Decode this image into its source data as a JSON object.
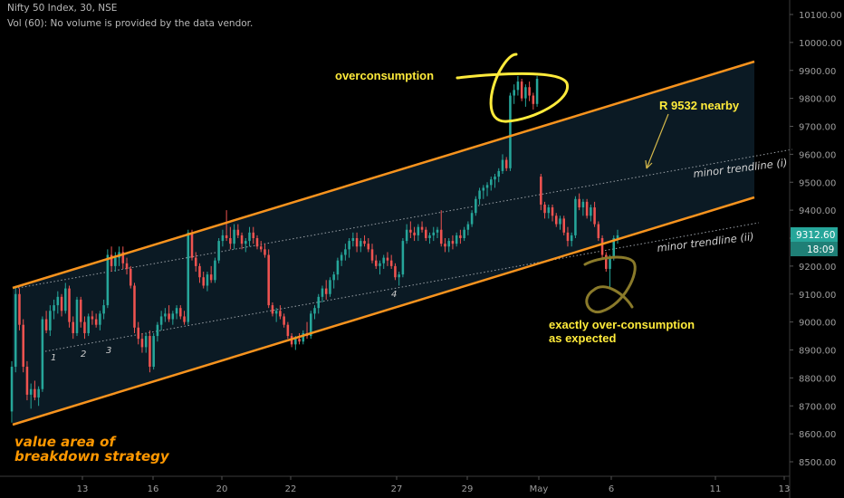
{
  "header": {
    "symbol_line": "Nifty 50 Index, 30, NSE",
    "volume_line": "Vol (60): No volume is provided by the data vendor."
  },
  "colors": {
    "background": "#000000",
    "channel_line": "#f7931e",
    "channel_fill": "#0b1a24",
    "candle_up": "#26a69a",
    "candle_down": "#ef5350",
    "annotation_yellow": "#ffeb3b",
    "annotation_orange": "#ff9800",
    "circle_olive": "#8a7a2a",
    "price_tag_bg": "#26a69a",
    "trendline_dotted": "#9aa0a6"
  },
  "chart_data": {
    "type": "candlestick",
    "symbol": "Nifty 50 Index",
    "interval": "30",
    "exchange": "NSE",
    "x_ticks": [
      "13",
      "16",
      "20",
      "22",
      "27",
      "29",
      "May",
      "6",
      "11",
      "13"
    ],
    "y_ticks": [
      "8500.00",
      "8600.00",
      "8700.00",
      "8800.00",
      "8900.00",
      "9000.00",
      "9100.00",
      "9200.00",
      "9300.00",
      "9400.00",
      "9500.00",
      "9600.00",
      "9700.00",
      "9800.00",
      "9900.00",
      "10000.00",
      "10100.00"
    ],
    "ylim": [
      8450,
      10160
    ],
    "last_price": "9312.60",
    "countdown": "18:09",
    "candles": [
      {
        "o": 8680,
        "h": 8860,
        "l": 8640,
        "c": 8840
      },
      {
        "o": 8840,
        "h": 9130,
        "l": 8820,
        "c": 9100
      },
      {
        "o": 9100,
        "h": 9120,
        "l": 8970,
        "c": 8990
      },
      {
        "o": 8990,
        "h": 9010,
        "l": 8820,
        "c": 8840
      },
      {
        "o": 8840,
        "h": 8860,
        "l": 8720,
        "c": 8740
      },
      {
        "o": 8740,
        "h": 8780,
        "l": 8690,
        "c": 8760
      },
      {
        "o": 8760,
        "h": 8790,
        "l": 8720,
        "c": 8730
      },
      {
        "o": 8730,
        "h": 8770,
        "l": 8700,
        "c": 8760
      },
      {
        "o": 8760,
        "h": 9020,
        "l": 8750,
        "c": 9010
      },
      {
        "o": 9010,
        "h": 9040,
        "l": 8960,
        "c": 8970
      },
      {
        "o": 8970,
        "h": 9060,
        "l": 8950,
        "c": 9040
      },
      {
        "o": 9040,
        "h": 9080,
        "l": 9010,
        "c": 9060
      },
      {
        "o": 9060,
        "h": 9110,
        "l": 9030,
        "c": 9090
      },
      {
        "o": 9090,
        "h": 9100,
        "l": 9020,
        "c": 9040
      },
      {
        "o": 9040,
        "h": 9140,
        "l": 9030,
        "c": 9120
      },
      {
        "o": 9120,
        "h": 9130,
        "l": 8980,
        "c": 9000
      },
      {
        "o": 9000,
        "h": 9020,
        "l": 8940,
        "c": 8960
      },
      {
        "o": 8960,
        "h": 9090,
        "l": 8950,
        "c": 9080
      },
      {
        "o": 9080,
        "h": 9090,
        "l": 8980,
        "c": 9000
      },
      {
        "o": 9000,
        "h": 9020,
        "l": 8940,
        "c": 8960
      },
      {
        "o": 8960,
        "h": 9030,
        "l": 8950,
        "c": 9020
      },
      {
        "o": 9020,
        "h": 9040,
        "l": 8990,
        "c": 9010
      },
      {
        "o": 9010,
        "h": 9030,
        "l": 8980,
        "c": 8990
      },
      {
        "o": 8990,
        "h": 9040,
        "l": 8970,
        "c": 9030
      },
      {
        "o": 9030,
        "h": 9080,
        "l": 9010,
        "c": 9060
      },
      {
        "o": 9060,
        "h": 9260,
        "l": 9050,
        "c": 9240
      },
      {
        "o": 9240,
        "h": 9270,
        "l": 9180,
        "c": 9200
      },
      {
        "o": 9200,
        "h": 9250,
        "l": 9180,
        "c": 9230
      },
      {
        "o": 9230,
        "h": 9270,
        "l": 9200,
        "c": 9250
      },
      {
        "o": 9250,
        "h": 9270,
        "l": 9190,
        "c": 9210
      },
      {
        "o": 9210,
        "h": 9230,
        "l": 9170,
        "c": 9190
      },
      {
        "o": 9190,
        "h": 9200,
        "l": 9120,
        "c": 9130
      },
      {
        "o": 9130,
        "h": 9140,
        "l": 8960,
        "c": 8980
      },
      {
        "o": 8980,
        "h": 9000,
        "l": 8920,
        "c": 8940
      },
      {
        "o": 8940,
        "h": 8960,
        "l": 8890,
        "c": 8910
      },
      {
        "o": 8910,
        "h": 8960,
        "l": 8890,
        "c": 8950
      },
      {
        "o": 8950,
        "h": 8970,
        "l": 8820,
        "c": 8840
      },
      {
        "o": 8840,
        "h": 8960,
        "l": 8830,
        "c": 8950
      },
      {
        "o": 8950,
        "h": 9000,
        "l": 8930,
        "c": 8990
      },
      {
        "o": 8990,
        "h": 9040,
        "l": 8970,
        "c": 9020
      },
      {
        "o": 9020,
        "h": 9050,
        "l": 9000,
        "c": 9030
      },
      {
        "o": 9030,
        "h": 9060,
        "l": 9000,
        "c": 9010
      },
      {
        "o": 9010,
        "h": 9040,
        "l": 8990,
        "c": 9030
      },
      {
        "o": 9030,
        "h": 9060,
        "l": 9010,
        "c": 9050
      },
      {
        "o": 9050,
        "h": 9060,
        "l": 9010,
        "c": 9020
      },
      {
        "o": 9020,
        "h": 9040,
        "l": 8990,
        "c": 9000
      },
      {
        "o": 9000,
        "h": 9330,
        "l": 8990,
        "c": 9320
      },
      {
        "o": 9320,
        "h": 9330,
        "l": 9220,
        "c": 9230
      },
      {
        "o": 9230,
        "h": 9250,
        "l": 9180,
        "c": 9200
      },
      {
        "o": 9200,
        "h": 9210,
        "l": 9140,
        "c": 9160
      },
      {
        "o": 9160,
        "h": 9180,
        "l": 9120,
        "c": 9130
      },
      {
        "o": 9130,
        "h": 9180,
        "l": 9110,
        "c": 9170
      },
      {
        "o": 9170,
        "h": 9200,
        "l": 9140,
        "c": 9150
      },
      {
        "o": 9150,
        "h": 9230,
        "l": 9140,
        "c": 9220
      },
      {
        "o": 9220,
        "h": 9300,
        "l": 9210,
        "c": 9290
      },
      {
        "o": 9290,
        "h": 9330,
        "l": 9270,
        "c": 9310
      },
      {
        "o": 9310,
        "h": 9400,
        "l": 9290,
        "c": 9300
      },
      {
        "o": 9300,
        "h": 9340,
        "l": 9260,
        "c": 9280
      },
      {
        "o": 9280,
        "h": 9350,
        "l": 9260,
        "c": 9330
      },
      {
        "o": 9330,
        "h": 9350,
        "l": 9300,
        "c": 9310
      },
      {
        "o": 9310,
        "h": 9320,
        "l": 9260,
        "c": 9280
      },
      {
        "o": 9280,
        "h": 9300,
        "l": 9250,
        "c": 9290
      },
      {
        "o": 9290,
        "h": 9340,
        "l": 9270,
        "c": 9320
      },
      {
        "o": 9320,
        "h": 9340,
        "l": 9280,
        "c": 9300
      },
      {
        "o": 9300,
        "h": 9310,
        "l": 9260,
        "c": 9270
      },
      {
        "o": 9270,
        "h": 9290,
        "l": 9250,
        "c": 9260
      },
      {
        "o": 9260,
        "h": 9280,
        "l": 9230,
        "c": 9240
      },
      {
        "o": 9240,
        "h": 9260,
        "l": 9050,
        "c": 9060
      },
      {
        "o": 9060,
        "h": 9070,
        "l": 9020,
        "c": 9030
      },
      {
        "o": 9030,
        "h": 9050,
        "l": 9000,
        "c": 9040
      },
      {
        "o": 9040,
        "h": 9060,
        "l": 9010,
        "c": 9020
      },
      {
        "o": 9020,
        "h": 9030,
        "l": 8980,
        "c": 8990
      },
      {
        "o": 8990,
        "h": 9000,
        "l": 8940,
        "c": 8950
      },
      {
        "o": 8950,
        "h": 8960,
        "l": 8910,
        "c": 8920
      },
      {
        "o": 8920,
        "h": 8950,
        "l": 8900,
        "c": 8940
      },
      {
        "o": 8940,
        "h": 8960,
        "l": 8920,
        "c": 8930
      },
      {
        "o": 8930,
        "h": 8970,
        "l": 8920,
        "c": 8960
      },
      {
        "o": 8960,
        "h": 9000,
        "l": 8940,
        "c": 8950
      },
      {
        "o": 8950,
        "h": 9040,
        "l": 8940,
        "c": 9030
      },
      {
        "o": 9030,
        "h": 9060,
        "l": 9010,
        "c": 9050
      },
      {
        "o": 9050,
        "h": 9100,
        "l": 9030,
        "c": 9090
      },
      {
        "o": 9090,
        "h": 9130,
        "l": 9070,
        "c": 9120
      },
      {
        "o": 9120,
        "h": 9150,
        "l": 9080,
        "c": 9100
      },
      {
        "o": 9100,
        "h": 9160,
        "l": 9090,
        "c": 9150
      },
      {
        "o": 9150,
        "h": 9180,
        "l": 9120,
        "c": 9170
      },
      {
        "o": 9170,
        "h": 9230,
        "l": 9150,
        "c": 9220
      },
      {
        "o": 9220,
        "h": 9250,
        "l": 9200,
        "c": 9240
      },
      {
        "o": 9240,
        "h": 9280,
        "l": 9220,
        "c": 9260
      },
      {
        "o": 9260,
        "h": 9300,
        "l": 9230,
        "c": 9290
      },
      {
        "o": 9290,
        "h": 9320,
        "l": 9270,
        "c": 9300
      },
      {
        "o": 9300,
        "h": 9320,
        "l": 9250,
        "c": 9270
      },
      {
        "o": 9270,
        "h": 9300,
        "l": 9250,
        "c": 9290
      },
      {
        "o": 9290,
        "h": 9310,
        "l": 9270,
        "c": 9280
      },
      {
        "o": 9280,
        "h": 9300,
        "l": 9250,
        "c": 9260
      },
      {
        "o": 9260,
        "h": 9280,
        "l": 9210,
        "c": 9220
      },
      {
        "o": 9220,
        "h": 9240,
        "l": 9190,
        "c": 9200
      },
      {
        "o": 9200,
        "h": 9220,
        "l": 9170,
        "c": 9210
      },
      {
        "o": 9210,
        "h": 9240,
        "l": 9190,
        "c": 9230
      },
      {
        "o": 9230,
        "h": 9250,
        "l": 9200,
        "c": 9220
      },
      {
        "o": 9220,
        "h": 9240,
        "l": 9190,
        "c": 9200
      },
      {
        "o": 9200,
        "h": 9210,
        "l": 9150,
        "c": 9160
      },
      {
        "o": 9160,
        "h": 9180,
        "l": 9130,
        "c": 9170
      },
      {
        "o": 9170,
        "h": 9300,
        "l": 9160,
        "c": 9290
      },
      {
        "o": 9290,
        "h": 9350,
        "l": 9280,
        "c": 9330
      },
      {
        "o": 9330,
        "h": 9360,
        "l": 9300,
        "c": 9320
      },
      {
        "o": 9320,
        "h": 9340,
        "l": 9290,
        "c": 9310
      },
      {
        "o": 9310,
        "h": 9350,
        "l": 9290,
        "c": 9340
      },
      {
        "o": 9340,
        "h": 9360,
        "l": 9320,
        "c": 9330
      },
      {
        "o": 9330,
        "h": 9340,
        "l": 9290,
        "c": 9300
      },
      {
        "o": 9300,
        "h": 9320,
        "l": 9280,
        "c": 9310
      },
      {
        "o": 9310,
        "h": 9340,
        "l": 9290,
        "c": 9320
      },
      {
        "o": 9320,
        "h": 9340,
        "l": 9300,
        "c": 9330
      },
      {
        "o": 9330,
        "h": 9400,
        "l": 9270,
        "c": 9280
      },
      {
        "o": 9280,
        "h": 9300,
        "l": 9250,
        "c": 9270
      },
      {
        "o": 9270,
        "h": 9300,
        "l": 9250,
        "c": 9290
      },
      {
        "o": 9290,
        "h": 9310,
        "l": 9260,
        "c": 9280
      },
      {
        "o": 9280,
        "h": 9320,
        "l": 9270,
        "c": 9310
      },
      {
        "o": 9310,
        "h": 9330,
        "l": 9280,
        "c": 9300
      },
      {
        "o": 9300,
        "h": 9340,
        "l": 9290,
        "c": 9330
      },
      {
        "o": 9330,
        "h": 9360,
        "l": 9310,
        "c": 9350
      },
      {
        "o": 9350,
        "h": 9400,
        "l": 9340,
        "c": 9390
      },
      {
        "o": 9390,
        "h": 9450,
        "l": 9380,
        "c": 9440
      },
      {
        "o": 9440,
        "h": 9480,
        "l": 9420,
        "c": 9470
      },
      {
        "o": 9470,
        "h": 9490,
        "l": 9440,
        "c": 9480
      },
      {
        "o": 9480,
        "h": 9500,
        "l": 9450,
        "c": 9490
      },
      {
        "o": 9490,
        "h": 9520,
        "l": 9470,
        "c": 9510
      },
      {
        "o": 9510,
        "h": 9530,
        "l": 9480,
        "c": 9520
      },
      {
        "o": 9520,
        "h": 9550,
        "l": 9500,
        "c": 9540
      },
      {
        "o": 9540,
        "h": 9600,
        "l": 9530,
        "c": 9580
      },
      {
        "o": 9580,
        "h": 9590,
        "l": 9540,
        "c": 9550
      },
      {
        "o": 9550,
        "h": 9820,
        "l": 9540,
        "c": 9810
      },
      {
        "o": 9810,
        "h": 9850,
        "l": 9780,
        "c": 9830
      },
      {
        "o": 9830,
        "h": 9880,
        "l": 9810,
        "c": 9860
      },
      {
        "o": 9860,
        "h": 9870,
        "l": 9790,
        "c": 9800
      },
      {
        "o": 9800,
        "h": 9850,
        "l": 9770,
        "c": 9840
      },
      {
        "o": 9840,
        "h": 9860,
        "l": 9790,
        "c": 9810
      },
      {
        "o": 9810,
        "h": 9820,
        "l": 9760,
        "c": 9780
      },
      {
        "o": 9780,
        "h": 9880,
        "l": 9770,
        "c": 9870
      },
      {
        "o": 9520,
        "h": 9530,
        "l": 9400,
        "c": 9420
      },
      {
        "o": 9420,
        "h": 9430,
        "l": 9370,
        "c": 9390
      },
      {
        "o": 9390,
        "h": 9420,
        "l": 9370,
        "c": 9410
      },
      {
        "o": 9410,
        "h": 9420,
        "l": 9360,
        "c": 9380
      },
      {
        "o": 9380,
        "h": 9390,
        "l": 9340,
        "c": 9350
      },
      {
        "o": 9350,
        "h": 9380,
        "l": 9330,
        "c": 9370
      },
      {
        "o": 9370,
        "h": 9380,
        "l": 9310,
        "c": 9320
      },
      {
        "o": 9320,
        "h": 9340,
        "l": 9270,
        "c": 9290
      },
      {
        "o": 9290,
        "h": 9320,
        "l": 9270,
        "c": 9310
      },
      {
        "o": 9310,
        "h": 9450,
        "l": 9300,
        "c": 9440
      },
      {
        "o": 9440,
        "h": 9460,
        "l": 9400,
        "c": 9410
      },
      {
        "o": 9410,
        "h": 9440,
        "l": 9380,
        "c": 9430
      },
      {
        "o": 9430,
        "h": 9440,
        "l": 9370,
        "c": 9380
      },
      {
        "o": 9380,
        "h": 9420,
        "l": 9360,
        "c": 9410
      },
      {
        "o": 9410,
        "h": 9430,
        "l": 9340,
        "c": 9350
      },
      {
        "o": 9350,
        "h": 9360,
        "l": 9290,
        "c": 9300
      },
      {
        "o": 9300,
        "h": 9310,
        "l": 9230,
        "c": 9240
      },
      {
        "o": 9240,
        "h": 9250,
        "l": 9180,
        "c": 9190
      },
      {
        "o": 9190,
        "h": 9240,
        "l": 9120,
        "c": 9230
      },
      {
        "o": 9230,
        "h": 9310,
        "l": 9220,
        "c": 9300
      },
      {
        "o": 9300,
        "h": 9330,
        "l": 9280,
        "c": 9310
      }
    ]
  },
  "annotations": {
    "overconsumption": "overconsumption",
    "r_nearby": "R 9532 nearby",
    "minor_i": "minor trendline (i)",
    "minor_ii": "minor trendline (ii)",
    "exactly_line1": "exactly over-consumption",
    "exactly_line2": "as expected",
    "value_line1": "value area of",
    "value_line2": "breakdown strategy",
    "pivots": [
      "1",
      "2",
      "3",
      "4"
    ]
  }
}
